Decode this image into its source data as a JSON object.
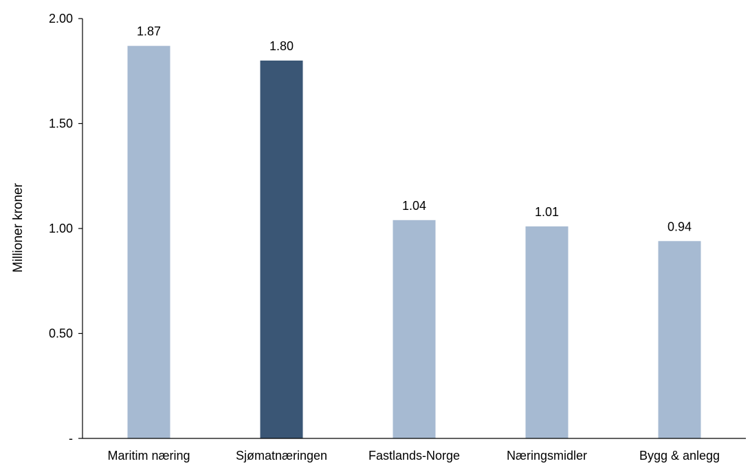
{
  "chart_data": {
    "type": "bar",
    "categories": [
      "Maritim næring",
      "Sjømatnæringen",
      "Fastlands-Norge",
      "Næringsmidler",
      "Bygg & anlegg"
    ],
    "values": [
      1.87,
      1.8,
      1.04,
      1.01,
      0.94
    ],
    "value_labels": [
      "1.87",
      "1.80",
      "1.04",
      "1.01",
      "0.94"
    ],
    "highlight_index": 1,
    "ylabel": "Millioner kroner",
    "xlabel": "",
    "ylim": [
      0,
      2
    ],
    "yticks": [
      0,
      0.5,
      1,
      1.5,
      2
    ],
    "ytick_labels": [
      "-",
      "0.50",
      "1.00",
      "1.50",
      "2.00"
    ],
    "grid": false,
    "colors": {
      "bar": "#a6bad2",
      "highlight": "#3a5675",
      "axis": "#000000"
    }
  }
}
